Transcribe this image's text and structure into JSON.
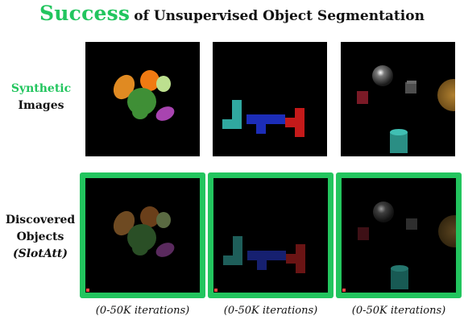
{
  "title": {
    "accent": "Success",
    "rest": "of Unsupervised Object Segmentation"
  },
  "rows": {
    "synthetic": {
      "line1": "Synthetic",
      "line2": "Images"
    },
    "discovered": {
      "line1": "Discovered",
      "line2": "Objects",
      "line3": "(SlotAtt)"
    }
  },
  "panels": [
    {
      "scene": "colored-blobs",
      "iterations": "(0-50K iterations)"
    },
    {
      "scene": "tetris-blocks",
      "iterations": "(0-50K iterations)"
    },
    {
      "scene": "clevr-objects",
      "iterations": "(0-50K iterations)"
    }
  ],
  "colors": {
    "accent": "#22c55e",
    "frame": "#22c55e",
    "background": "#000000",
    "progress": "#ef4444"
  }
}
